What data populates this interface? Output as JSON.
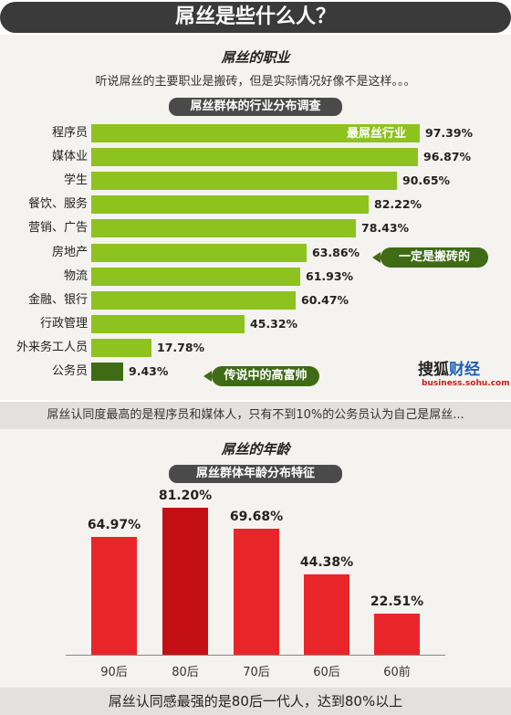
{
  "header": {
    "title": "屌丝是些什么人？"
  },
  "section1": {
    "heading": "屌丝的职业",
    "description": "听说屌丝的主要职业是搬砖，但是实际情况好像不是这样。。。",
    "chart_title": "屌丝群体的行业分布调查",
    "annotations": {
      "top": "最屌丝行业",
      "realestate": "一定是搬砖的",
      "civil": "传说中的高富帅"
    },
    "footer": "屌丝认同度最高的是程序员和媒体人，只有不到10%的公务员认为自己是屌丝..."
  },
  "brand": {
    "name_part1": "搜狐",
    "name_part2": "财经",
    "url": "business.sohu.com"
  },
  "section2": {
    "heading": "屌丝的年龄",
    "chart_title": "屌丝群体年龄分布特征",
    "footer": "屌丝认同感最强的是80后一代人，达到80%以上"
  },
  "chart_data": [
    {
      "type": "bar",
      "orientation": "horizontal",
      "title": "屌丝群体的行业分布调查",
      "categories": [
        "程序员",
        "媒体业",
        "学生",
        "餐饮、服务",
        "营销、广告",
        "房地产",
        "物流",
        "金融、银行",
        "行政管理",
        "外来务工人员",
        "公务员"
      ],
      "values": [
        97.39,
        96.87,
        90.65,
        82.22,
        78.43,
        63.86,
        61.93,
        60.47,
        45.32,
        17.78,
        9.43
      ],
      "labels": [
        "97.39%",
        "96.87%",
        "90.65%",
        "82.22%",
        "78.43%",
        "63.86%",
        "61.93%",
        "60.47%",
        "45.32%",
        "17.78%",
        "9.43%"
      ],
      "unit": "%",
      "colors": {
        "bar": "#8dc21f",
        "highlight": "#3f6b16"
      }
    },
    {
      "type": "bar",
      "orientation": "vertical",
      "title": "屌丝群体年龄分布特征",
      "categories": [
        "90后",
        "80后",
        "70后",
        "60后",
        "60前"
      ],
      "values": [
        64.97,
        81.2,
        69.68,
        44.38,
        22.51
      ],
      "labels": [
        "64.97%",
        "81.20%",
        "69.68%",
        "44.38%",
        "22.51%"
      ],
      "unit": "%",
      "colors": {
        "bar": "#e8262a",
        "peak": "#c41015"
      }
    }
  ]
}
